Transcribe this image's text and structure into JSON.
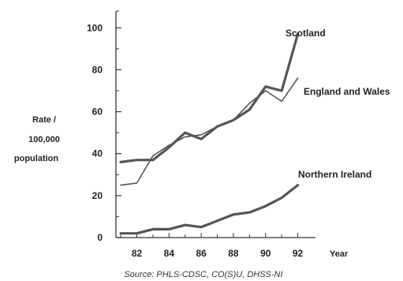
{
  "chart_data": {
    "type": "line",
    "title": "",
    "xlabel": "Year",
    "ylabel_lines": [
      "Rate /",
      "100,000",
      "population"
    ],
    "source": "Source: PHLS-CDSC, CO(S)U, DHSS-NI",
    "xlim": [
      1980.7,
      1993.1
    ],
    "ylim": [
      0,
      108
    ],
    "x_ticks": [
      {
        "value": 1982,
        "label": "82"
      },
      {
        "value": 1984,
        "label": "84"
      },
      {
        "value": 1986,
        "label": "86"
      },
      {
        "value": 1988,
        "label": "88"
      },
      {
        "value": 1990,
        "label": "90"
      },
      {
        "value": 1992,
        "label": "92"
      }
    ],
    "y_ticks": [
      {
        "value": 0,
        "label": "0"
      },
      {
        "value": 20,
        "label": "20"
      },
      {
        "value": 40,
        "label": "40"
      },
      {
        "value": 60,
        "label": "60"
      },
      {
        "value": 80,
        "label": "80"
      },
      {
        "value": 100,
        "label": "100"
      }
    ],
    "grid": false,
    "legend": "direct labels on lines",
    "series": [
      {
        "name": "Scotland",
        "color": "#555555",
        "x": [
          1981,
          1982,
          1983,
          1984,
          1985,
          1986,
          1987,
          1988,
          1989,
          1990,
          1991,
          1992
        ],
        "y": [
          36,
          37,
          37,
          43,
          50,
          47,
          53,
          56,
          61,
          72,
          70,
          97
        ]
      },
      {
        "name": "England and Wales",
        "color": "#555555",
        "x": [
          1981,
          1982,
          1983,
          1984,
          1985,
          1986,
          1987,
          1988,
          1989,
          1990,
          1991,
          1992
        ],
        "y": [
          25,
          26,
          39,
          44,
          48,
          49,
          53,
          56,
          64,
          70,
          65,
          76
        ]
      },
      {
        "name": "Northern Ireland",
        "color": "#555555",
        "x": [
          1981,
          1982,
          1983,
          1984,
          1985,
          1986,
          1987,
          1988,
          1989,
          1990,
          1991,
          1992
        ],
        "y": [
          2,
          2,
          4,
          4,
          6,
          5,
          8,
          11,
          12,
          15,
          19,
          25
        ]
      }
    ]
  }
}
